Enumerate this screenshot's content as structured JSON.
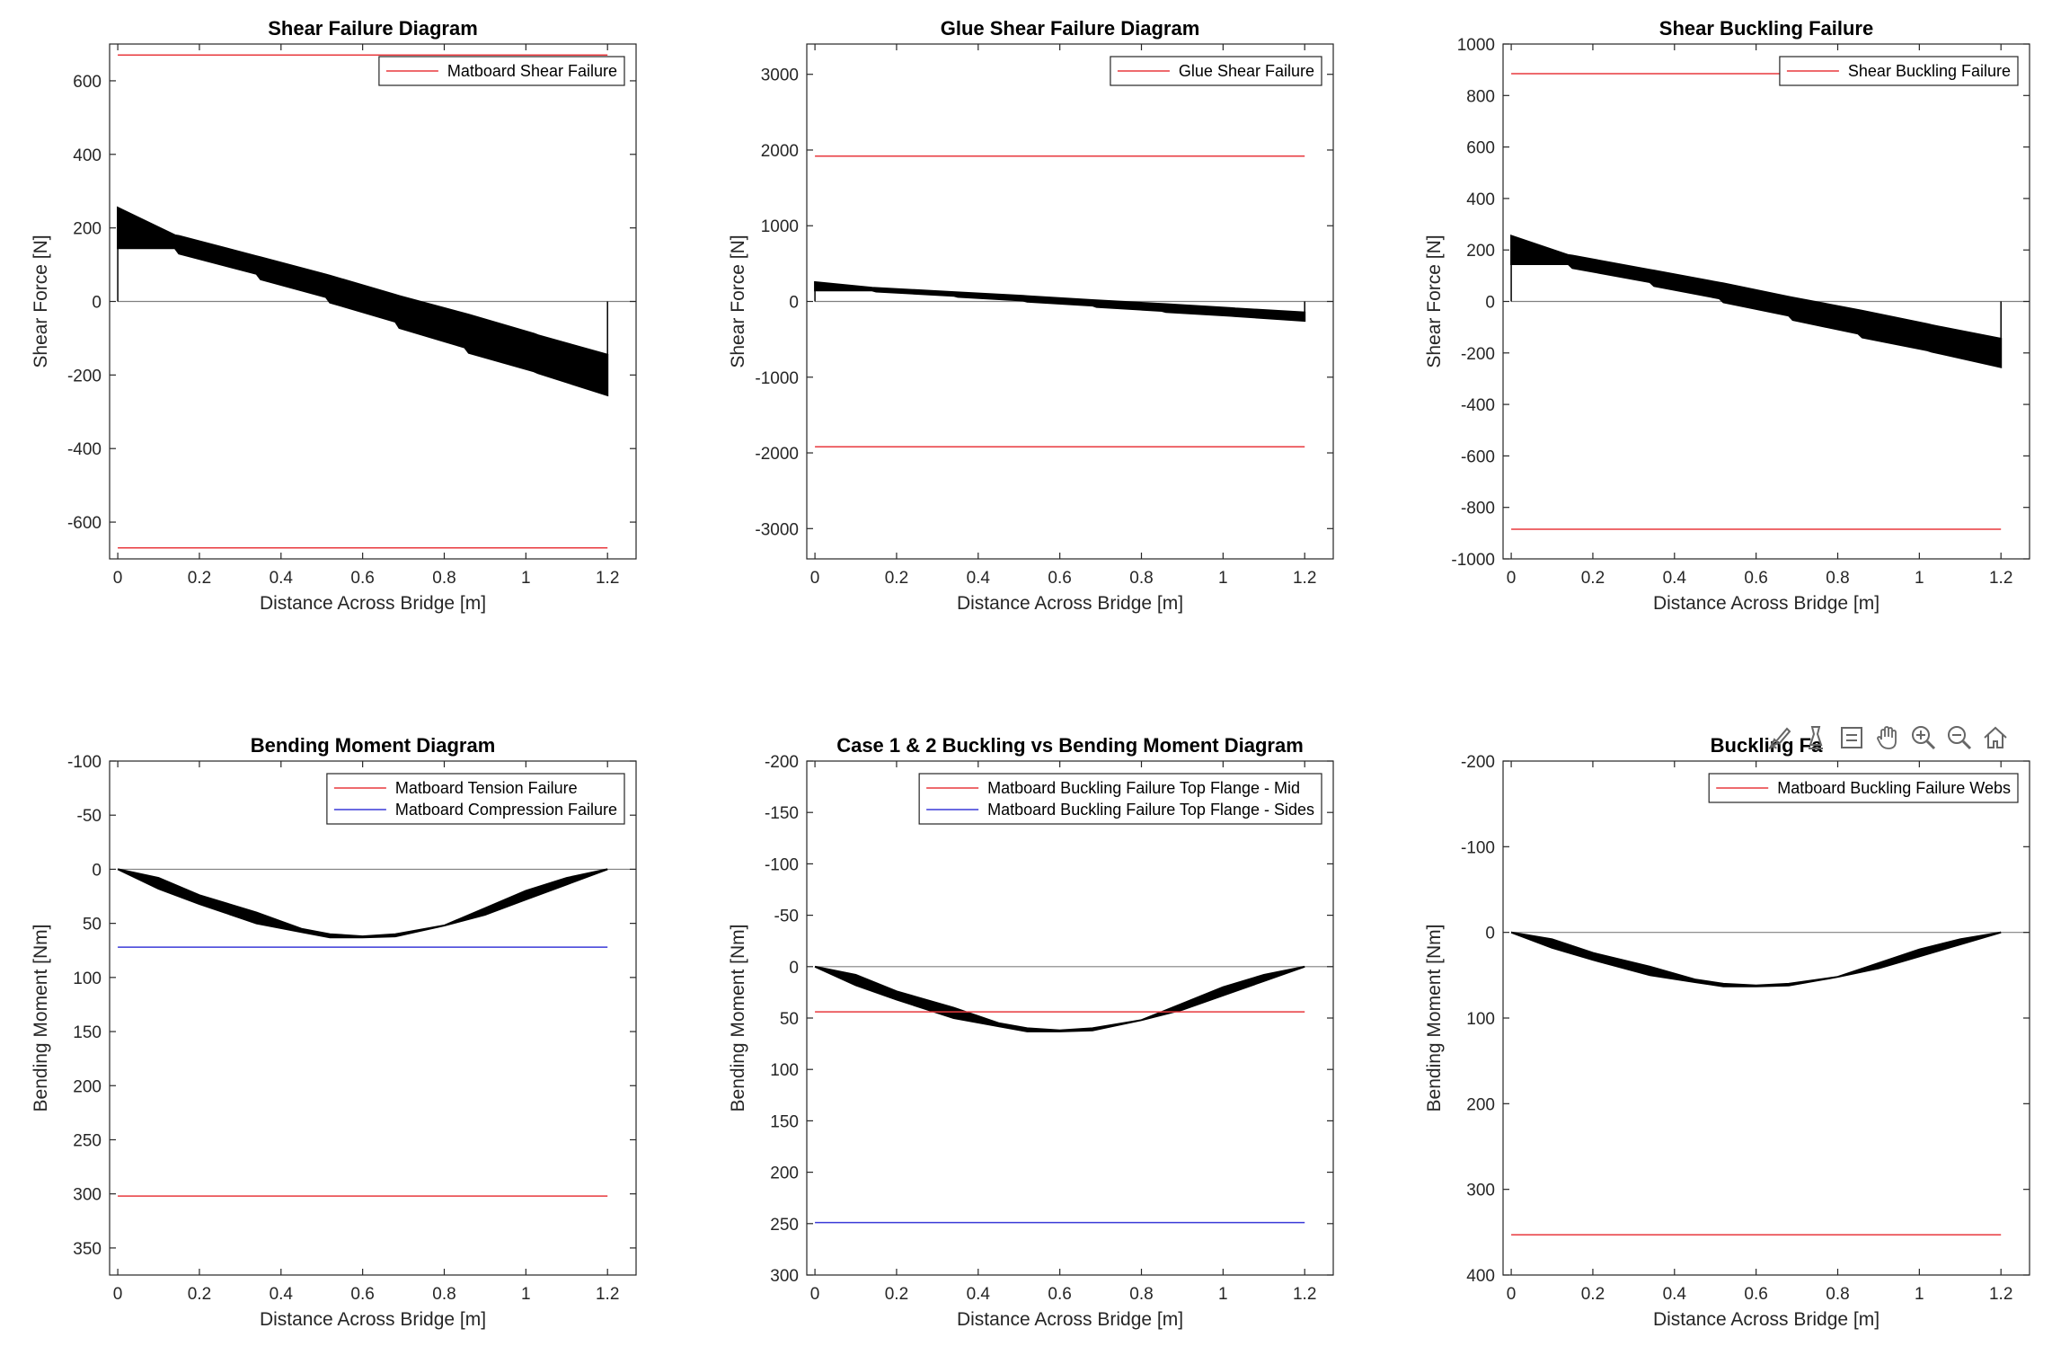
{
  "colors": {
    "red": "#e8383d",
    "blue": "#3a3ad8",
    "data": "#000000",
    "axis": "#262626",
    "zero": "#808080"
  },
  "toolbar": {
    "icons": [
      "brush-icon",
      "data-tips-icon",
      "restore-view-icon",
      "pan-hand-icon",
      "zoom-in-icon",
      "zoom-out-icon",
      "home-icon"
    ]
  },
  "chart_data": [
    {
      "type": "line",
      "title": "Shear Failure Diagram",
      "xlabel": "Distance Across Bridge [m]",
      "ylabel": "Shear Force [N]",
      "xlim": [
        -0.02,
        1.27
      ],
      "ylim": [
        -700,
        700
      ],
      "y_reversed": false,
      "xticks": [
        0,
        0.2,
        0.4,
        0.6,
        0.8,
        1,
        1.2
      ],
      "xtick_labels": [
        "0",
        "0.2",
        "0.4",
        "0.6",
        "0.8",
        "1",
        "1.2"
      ],
      "yticks": [
        -600,
        -400,
        -200,
        0,
        200,
        400,
        600
      ],
      "ytick_labels": [
        "-600",
        "-400",
        "-200",
        "0",
        "200",
        "400",
        "600"
      ],
      "legend_position": "top-right",
      "legend": [
        {
          "label": "Matboard Shear Failure",
          "color": "red"
        }
      ],
      "ref_lines": [
        {
          "y": 670,
          "x": [
            0,
            1.2
          ],
          "color": "red"
        },
        {
          "y": -670,
          "x": [
            0,
            1.2
          ],
          "color": "red"
        }
      ],
      "envelope": {
        "x": [
          0,
          0.14,
          0.15,
          0.34,
          0.35,
          0.51,
          0.52,
          0.68,
          0.69,
          0.85,
          0.86,
          1.02,
          1.03,
          1.2
        ],
        "upper": [
          255,
          180,
          178,
          123,
          120,
          73,
          70,
          18,
          15,
          -33,
          -36,
          -88,
          -92,
          -145
        ],
        "lower": [
          145,
          145,
          130,
          75,
          60,
          12,
          -3,
          -55,
          -72,
          -125,
          -140,
          -190,
          -195,
          -255
        ]
      },
      "lead_in": true
    },
    {
      "type": "line",
      "title": "Glue Shear Failure Diagram",
      "xlabel": "Distance Across Bridge [m]",
      "ylabel": "Shear Force [N]",
      "xlim": [
        -0.02,
        1.27
      ],
      "ylim": [
        -3400,
        3400
      ],
      "y_reversed": false,
      "xticks": [
        0,
        0.2,
        0.4,
        0.6,
        0.8,
        1,
        1.2
      ],
      "xtick_labels": [
        "0",
        "0.2",
        "0.4",
        "0.6",
        "0.8",
        "1",
        "1.2"
      ],
      "yticks": [
        -3000,
        -2000,
        -1000,
        0,
        1000,
        2000,
        3000
      ],
      "ytick_labels": [
        "-3000",
        "-2000",
        "-1000",
        "0",
        "1000",
        "2000",
        "3000"
      ],
      "legend_position": "top-right",
      "legend": [
        {
          "label": "Glue Shear Failure",
          "color": "red"
        }
      ],
      "ref_lines": [
        {
          "y": 1920,
          "x": [
            0,
            1.2
          ],
          "color": "red"
        },
        {
          "y": -1920,
          "x": [
            0,
            1.2
          ],
          "color": "red"
        }
      ],
      "envelope": {
        "x": [
          0,
          0.14,
          0.15,
          0.34,
          0.35,
          0.51,
          0.52,
          0.68,
          0.69,
          0.85,
          0.86,
          1.02,
          1.03,
          1.2
        ],
        "upper": [
          255,
          180,
          178,
          123,
          120,
          73,
          70,
          18,
          15,
          -33,
          -36,
          -88,
          -92,
          -145
        ],
        "lower": [
          145,
          145,
          130,
          75,
          60,
          12,
          -3,
          -55,
          -72,
          -125,
          -140,
          -190,
          -195,
          -255
        ]
      },
      "lead_in": true
    },
    {
      "type": "line",
      "title": "Shear Buckling Failure",
      "xlabel": "Distance Across Bridge [m]",
      "ylabel": "Shear Force [N]",
      "xlim": [
        -0.02,
        1.27
      ],
      "ylim": [
        -1000,
        1000
      ],
      "y_reversed": false,
      "xticks": [
        0,
        0.2,
        0.4,
        0.6,
        0.8,
        1,
        1.2
      ],
      "xtick_labels": [
        "0",
        "0.2",
        "0.4",
        "0.6",
        "0.8",
        "1",
        "1.2"
      ],
      "yticks": [
        -1000,
        -800,
        -600,
        -400,
        -200,
        0,
        200,
        400,
        600,
        800,
        1000
      ],
      "ytick_labels": [
        "-1000",
        "-800",
        "-600",
        "-400",
        "-200",
        "0",
        "200",
        "400",
        "600",
        "800",
        "1000"
      ],
      "legend_position": "top-right",
      "legend": [
        {
          "label": "Shear Buckling Failure",
          "color": "red"
        }
      ],
      "ref_lines": [
        {
          "y": 885,
          "x": [
            0,
            1.2
          ],
          "color": "red"
        },
        {
          "y": -885,
          "x": [
            0,
            1.2
          ],
          "color": "red"
        }
      ],
      "envelope": {
        "x": [
          0,
          0.14,
          0.15,
          0.34,
          0.35,
          0.51,
          0.52,
          0.68,
          0.69,
          0.85,
          0.86,
          1.02,
          1.03,
          1.2
        ],
        "upper": [
          255,
          180,
          178,
          123,
          120,
          73,
          70,
          18,
          15,
          -33,
          -36,
          -88,
          -92,
          -145
        ],
        "lower": [
          145,
          145,
          130,
          75,
          60,
          12,
          -3,
          -55,
          -72,
          -125,
          -140,
          -190,
          -195,
          -255
        ]
      },
      "lead_in": true
    },
    {
      "type": "line",
      "title": "Bending Moment Diagram",
      "xlabel": "Distance Across Bridge [m]",
      "ylabel": "Bending Moment [Nm]",
      "xlim": [
        -0.02,
        1.27
      ],
      "ylim": [
        -100,
        375
      ],
      "y_reversed": true,
      "xticks": [
        0,
        0.2,
        0.4,
        0.6,
        0.8,
        1,
        1.2
      ],
      "xtick_labels": [
        "0",
        "0.2",
        "0.4",
        "0.6",
        "0.8",
        "1",
        "1.2"
      ],
      "yticks": [
        -100,
        -50,
        0,
        50,
        100,
        150,
        200,
        250,
        300,
        350
      ],
      "ytick_labels": [
        "-100",
        "-50",
        "0",
        "50",
        "100",
        "150",
        "200",
        "250",
        "300",
        "350"
      ],
      "legend_position": "top-right",
      "legend": [
        {
          "label": "Matboard Tension Failure",
          "color": "red"
        },
        {
          "label": "Matboard Compression Failure",
          "color": "blue"
        }
      ],
      "ref_lines": [
        {
          "y": 72,
          "x": [
            0,
            1.2
          ],
          "color": "blue"
        },
        {
          "y": 302,
          "x": [
            0,
            1.2
          ],
          "color": "red"
        }
      ],
      "envelope": {
        "x": [
          0,
          0.1,
          0.2,
          0.34,
          0.45,
          0.52,
          0.6,
          0.68,
          0.8,
          0.9,
          1.0,
          1.1,
          1.2
        ],
        "upper": [
          0,
          18,
          32,
          50,
          58,
          63,
          63,
          62,
          52,
          42,
          28,
          14,
          0
        ],
        "lower": [
          0,
          8,
          24,
          40,
          55,
          60,
          62,
          60,
          52,
          36,
          20,
          8,
          0
        ]
      },
      "lead_in": false
    },
    {
      "type": "line",
      "title": "Case 1 & 2 Buckling vs Bending Moment Diagram",
      "xlabel": "Distance Across Bridge [m]",
      "ylabel": "Bending Moment [Nm]",
      "xlim": [
        -0.02,
        1.27
      ],
      "ylim": [
        -200,
        300
      ],
      "y_reversed": true,
      "xticks": [
        0,
        0.2,
        0.4,
        0.6,
        0.8,
        1,
        1.2
      ],
      "xtick_labels": [
        "0",
        "0.2",
        "0.4",
        "0.6",
        "0.8",
        "1",
        "1.2"
      ],
      "yticks": [
        -200,
        -150,
        -100,
        -50,
        0,
        50,
        100,
        150,
        200,
        250,
        300
      ],
      "ytick_labels": [
        "-200",
        "-150",
        "-100",
        "-50",
        "0",
        "50",
        "100",
        "150",
        "200",
        "250",
        "300"
      ],
      "legend_position": "top-right",
      "legend": [
        {
          "label": "Matboard Buckling Failure Top Flange - Mid",
          "color": "red"
        },
        {
          "label": "Matboard Buckling Failure Top Flange - Sides",
          "color": "blue"
        }
      ],
      "ref_lines": [
        {
          "y": 44,
          "x": [
            0,
            1.2
          ],
          "color": "red"
        },
        {
          "y": 249,
          "x": [
            0,
            1.2
          ],
          "color": "blue"
        }
      ],
      "envelope": {
        "x": [
          0,
          0.1,
          0.2,
          0.34,
          0.45,
          0.52,
          0.6,
          0.68,
          0.8,
          0.9,
          1.0,
          1.1,
          1.2
        ],
        "upper": [
          0,
          18,
          32,
          50,
          58,
          63,
          63,
          62,
          52,
          42,
          28,
          14,
          0
        ],
        "lower": [
          0,
          8,
          24,
          40,
          55,
          60,
          62,
          60,
          52,
          36,
          20,
          8,
          0
        ]
      },
      "lead_in": false
    },
    {
      "type": "line",
      "title": "Buckling Fa",
      "xlabel": "Distance Across Bridge [m]",
      "ylabel": "Bending Moment [Nm]",
      "xlim": [
        -0.02,
        1.27
      ],
      "ylim": [
        -200,
        400
      ],
      "y_reversed": true,
      "xticks": [
        0,
        0.2,
        0.4,
        0.6,
        0.8,
        1,
        1.2
      ],
      "xtick_labels": [
        "0",
        "0.2",
        "0.4",
        "0.6",
        "0.8",
        "1",
        "1.2"
      ],
      "yticks": [
        -200,
        -100,
        0,
        100,
        200,
        300,
        400
      ],
      "ytick_labels": [
        "-200",
        "-100",
        "0",
        "100",
        "200",
        "300",
        "400"
      ],
      "legend_position": "top-right",
      "legend": [
        {
          "label": "Matboard Buckling Failure Webs",
          "color": "red"
        }
      ],
      "ref_lines": [
        {
          "y": 353,
          "x": [
            0,
            1.2
          ],
          "color": "red"
        }
      ],
      "envelope": {
        "x": [
          0,
          0.1,
          0.2,
          0.34,
          0.45,
          0.52,
          0.6,
          0.68,
          0.8,
          0.9,
          1.0,
          1.1,
          1.2
        ],
        "upper": [
          0,
          18,
          32,
          50,
          58,
          63,
          63,
          62,
          52,
          42,
          28,
          14,
          0
        ],
        "lower": [
          0,
          8,
          24,
          40,
          55,
          60,
          62,
          60,
          52,
          36,
          20,
          8,
          0
        ]
      },
      "lead_in": false
    }
  ]
}
